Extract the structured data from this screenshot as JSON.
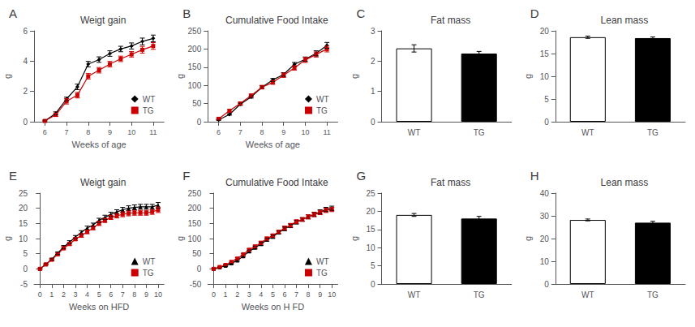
{
  "chart_data": [
    {
      "type": "line",
      "title": "Weigt gain",
      "annotation": "A",
      "xlabel": "Weeks of age",
      "ylabel": "g",
      "xlim": [
        5.5,
        11.5
      ],
      "ylim": [
        0,
        6
      ],
      "xticks": [
        6,
        7,
        8,
        9,
        10,
        11
      ],
      "yticks": [
        0,
        2,
        4,
        6
      ],
      "grid": false,
      "legend": "lower right",
      "series": [
        {
          "name": "WT",
          "color": "#000000",
          "marker": "diamond",
          "x": [
            6,
            6.5,
            7,
            7.5,
            8,
            8.5,
            9,
            9.5,
            10,
            10.5,
            11
          ],
          "values": [
            0.05,
            0.55,
            1.5,
            2.3,
            3.8,
            4.1,
            4.5,
            4.8,
            5.0,
            5.3,
            5.5
          ],
          "errors": [
            0.05,
            0.1,
            0.12,
            0.18,
            0.18,
            0.18,
            0.18,
            0.18,
            0.2,
            0.22,
            0.22
          ]
        },
        {
          "name": "TG",
          "color": "#cc0000",
          "marker": "square",
          "x": [
            6,
            6.5,
            7,
            7.5,
            8,
            8.5,
            9,
            9.5,
            10,
            10.5,
            11
          ],
          "values": [
            0.05,
            0.45,
            1.35,
            1.75,
            3.0,
            3.4,
            3.8,
            4.15,
            4.45,
            4.75,
            5.0
          ],
          "errors": [
            0.05,
            0.1,
            0.18,
            0.18,
            0.18,
            0.18,
            0.18,
            0.18,
            0.18,
            0.22,
            0.22
          ]
        }
      ]
    },
    {
      "type": "line",
      "title": "Cumulative Food Intake",
      "annotation": "B",
      "xlabel": "Weeks of age",
      "ylabel": "g",
      "xlim": [
        5.5,
        11.5
      ],
      "ylim": [
        0,
        250
      ],
      "xticks": [
        6,
        7,
        8,
        9,
        10,
        11
      ],
      "yticks": [
        0,
        50,
        100,
        150,
        200,
        250
      ],
      "grid": false,
      "legend": "lower right",
      "series": [
        {
          "name": "WT",
          "color": "#000000",
          "marker": "diamond",
          "x": [
            6,
            6.5,
            7,
            7.5,
            8,
            8.5,
            9,
            9.5,
            10,
            10.5,
            11
          ],
          "values": [
            5,
            20,
            48,
            68,
            95,
            115,
            130,
            158,
            172,
            188,
            210
          ],
          "errors": [
            1,
            2,
            3,
            3,
            4,
            4,
            5,
            5,
            6,
            7,
            8
          ]
        },
        {
          "name": "TG",
          "color": "#cc0000",
          "marker": "square",
          "x": [
            6,
            6.5,
            7,
            7.5,
            8,
            8.5,
            9,
            9.5,
            10,
            10.5,
            11
          ],
          "values": [
            8,
            30,
            50,
            72,
            95,
            108,
            128,
            148,
            170,
            185,
            200
          ],
          "errors": [
            2,
            3,
            4,
            4,
            5,
            5,
            6,
            6,
            7,
            7,
            8
          ]
        }
      ]
    },
    {
      "type": "bar",
      "title": "Fat mass",
      "annotation": "C",
      "ylabel": "g",
      "categories": [
        "WT",
        "TG"
      ],
      "values": [
        2.42,
        2.25
      ],
      "errors": [
        0.12,
        0.07
      ],
      "colors": [
        "white",
        "black"
      ],
      "ylim": [
        0,
        3
      ],
      "yticks": [
        0,
        1,
        2,
        3
      ],
      "grid": false
    },
    {
      "type": "bar",
      "title": "Lean mass",
      "annotation": "D",
      "ylabel": "g",
      "categories": [
        "WT",
        "TG"
      ],
      "values": [
        18.6,
        18.4
      ],
      "errors": [
        0.25,
        0.25
      ],
      "colors": [
        "white",
        "black"
      ],
      "ylim": [
        0,
        20
      ],
      "yticks": [
        0,
        5,
        10,
        15,
        20
      ],
      "grid": false
    },
    {
      "type": "line",
      "title": "Weigt gain",
      "annotation": "E",
      "xlabel": "Weeks on HFD",
      "ylabel": "g",
      "xlim": [
        -0.5,
        10.5
      ],
      "ylim": [
        -5,
        25
      ],
      "xticks": [
        0,
        1,
        2,
        3,
        4,
        5,
        6,
        7,
        8,
        9,
        10
      ],
      "yticks": [
        -5,
        0,
        5,
        10,
        15,
        20,
        25
      ],
      "grid": false,
      "legend": "lower right",
      "series": [
        {
          "name": "WT",
          "color": "#000000",
          "marker": "triangle",
          "x": [
            0,
            0.5,
            1,
            1.5,
            2,
            2.5,
            3,
            3.5,
            4,
            4.5,
            5,
            5.5,
            6,
            6.5,
            7,
            7.5,
            8,
            8.5,
            9,
            9.5,
            10
          ],
          "values": [
            0,
            1.5,
            3.2,
            5.2,
            7.2,
            8.8,
            10.5,
            12.0,
            13.5,
            14.5,
            16.0,
            17.0,
            18.0,
            18.8,
            19.5,
            20.0,
            20.3,
            20.5,
            20.5,
            20.5,
            21.0
          ],
          "errors": [
            0.05,
            0.2,
            0.3,
            0.4,
            0.5,
            0.5,
            0.5,
            0.6,
            0.6,
            0.6,
            0.7,
            0.7,
            0.7,
            0.7,
            0.8,
            0.8,
            0.8,
            0.8,
            0.8,
            0.8,
            0.9
          ]
        },
        {
          "name": "TG",
          "color": "#cc0000",
          "marker": "square",
          "x": [
            0,
            0.5,
            1,
            1.5,
            2,
            2.5,
            3,
            3.5,
            4,
            4.5,
            5,
            5.5,
            6,
            6.5,
            7,
            7.5,
            8,
            8.5,
            9,
            9.5,
            10
          ],
          "values": [
            0,
            1.5,
            3.0,
            4.8,
            6.8,
            8.2,
            9.8,
            11.0,
            12.2,
            13.5,
            15.0,
            16.0,
            17.0,
            17.5,
            18.0,
            18.3,
            18.5,
            18.5,
            18.5,
            18.8,
            19.5
          ],
          "errors": [
            0.05,
            0.2,
            0.3,
            0.4,
            0.5,
            0.5,
            0.5,
            0.6,
            0.6,
            0.6,
            0.7,
            0.7,
            0.7,
            0.7,
            0.8,
            0.8,
            0.8,
            0.8,
            0.8,
            0.8,
            0.9
          ]
        }
      ]
    },
    {
      "type": "line",
      "title": "Cumulative Food Intake",
      "annotation": "F",
      "xlabel": "Weeks on H FD",
      "ylabel": "g",
      "xlim": [
        -0.5,
        10.5
      ],
      "ylim": [
        -50,
        250
      ],
      "xticks": [
        0,
        1,
        2,
        3,
        4,
        5,
        6,
        7,
        8,
        9,
        10
      ],
      "yticks": [
        -50,
        0,
        50,
        100,
        150,
        200,
        250
      ],
      "grid": false,
      "legend": "lower right",
      "series": [
        {
          "name": "WT",
          "color": "#000000",
          "marker": "triangle",
          "x": [
            0,
            0.5,
            1,
            1.5,
            2,
            2.5,
            3,
            3.5,
            4,
            4.5,
            5,
            5.5,
            6,
            6.5,
            7,
            7.5,
            8,
            8.5,
            9,
            9.5,
            10
          ],
          "values": [
            0,
            5,
            10,
            18,
            28,
            42,
            58,
            70,
            82,
            96,
            106,
            120,
            132,
            142,
            154,
            163,
            172,
            180,
            188,
            196,
            200
          ],
          "errors": [
            0.5,
            1,
            2,
            2,
            3,
            3,
            4,
            4,
            5,
            5,
            5,
            5,
            6,
            6,
            6,
            6,
            7,
            7,
            7,
            7,
            7
          ]
        },
        {
          "name": "TG",
          "color": "#cc0000",
          "marker": "square",
          "x": [
            0,
            0.5,
            1,
            1.5,
            2,
            2.5,
            3,
            3.5,
            4,
            4.5,
            5,
            5.5,
            6,
            6.5,
            7,
            7.5,
            8,
            8.5,
            9,
            9.5,
            10
          ],
          "values": [
            0,
            6,
            13,
            23,
            34,
            48,
            63,
            74,
            86,
            100,
            110,
            122,
            135,
            144,
            156,
            163,
            172,
            179,
            186,
            193,
            196
          ],
          "errors": [
            0.5,
            1,
            2,
            2,
            3,
            3,
            4,
            4,
            5,
            5,
            5,
            5,
            6,
            6,
            6,
            6,
            7,
            7,
            7,
            7,
            7
          ]
        }
      ]
    },
    {
      "type": "bar",
      "title": "Fat mass",
      "annotation": "G",
      "ylabel": "g",
      "categories": [
        "WT",
        "TG"
      ],
      "values": [
        19.0,
        18.0
      ],
      "errors": [
        0.4,
        0.6
      ],
      "colors": [
        "white",
        "black"
      ],
      "ylim": [
        0,
        25
      ],
      "yticks": [
        0,
        5,
        10,
        15,
        20,
        25
      ],
      "grid": false
    },
    {
      "type": "bar",
      "title": "Lean mass",
      "annotation": "H",
      "ylabel": "g",
      "categories": [
        "WT",
        "TG"
      ],
      "values": [
        28.2,
        27.0
      ],
      "errors": [
        0.4,
        0.6
      ],
      "colors": [
        "white",
        "black"
      ],
      "ylim": [
        0,
        40
      ],
      "yticks": [
        0,
        10,
        20,
        30,
        40
      ],
      "grid": false
    }
  ]
}
